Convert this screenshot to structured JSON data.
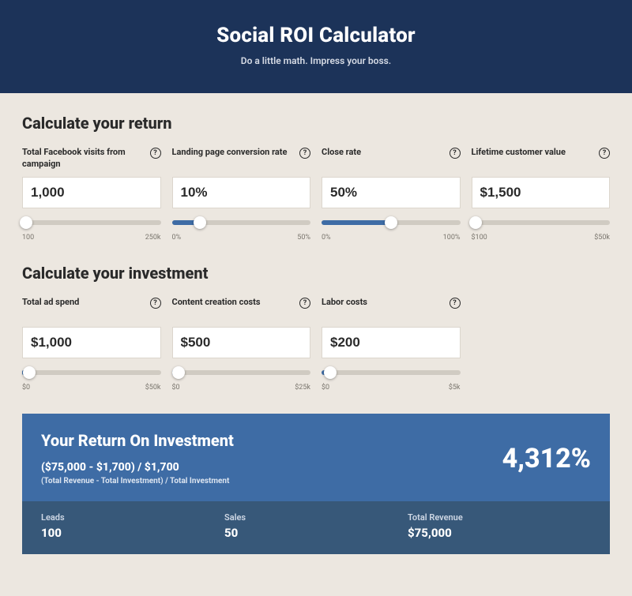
{
  "colors": {
    "hero_bg": "#1c3359",
    "page_bg": "#ece7e0",
    "card_bg": "#3e6ca5",
    "card_bottom_bg": "#375879",
    "slider_track": "#d0cbc2",
    "slider_fill": "#3e6ca5",
    "input_bg": "#ffffff",
    "text": "#2a2a2a"
  },
  "hero": {
    "title": "Social ROI Calculator",
    "subtitle": "Do a little math. Impress your boss."
  },
  "sections": {
    "return": {
      "title": "Calculate your return"
    },
    "investment": {
      "title": "Calculate your investment"
    }
  },
  "return_fields": [
    {
      "label": "Total Facebook visits from campaign",
      "value": "1,000",
      "min": "100",
      "max": "250k",
      "fill_pct": 0,
      "thumb_pct": 3
    },
    {
      "label": "Landing page conversion rate",
      "value": "10%",
      "min": "0%",
      "max": "50%",
      "fill_pct": 20,
      "thumb_pct": 20
    },
    {
      "label": "Close rate",
      "value": "50%",
      "min": "0%",
      "max": "100%",
      "fill_pct": 50,
      "thumb_pct": 50
    },
    {
      "label": "Lifetime customer value",
      "value": "$1,500",
      "min": "$100",
      "max": "$50k",
      "fill_pct": 3,
      "thumb_pct": 3
    }
  ],
  "investment_fields": [
    {
      "label": "Total ad spend",
      "value": "$1,000",
      "min": "$0",
      "max": "$50k",
      "fill_pct": 2,
      "thumb_pct": 5
    },
    {
      "label": "Content creation costs",
      "value": "$500",
      "min": "$0",
      "max": "$25k",
      "fill_pct": 2,
      "thumb_pct": 5
    },
    {
      "label": "Labor costs",
      "value": "$200",
      "min": "$0",
      "max": "$5k",
      "fill_pct": 4,
      "thumb_pct": 6
    }
  ],
  "roi": {
    "heading": "Your Return On Investment",
    "formula": "($75,000 - $1,700) / $1,700",
    "formula_caption": "(Total Revenue - Total Investment) / Total Investment",
    "percent": "4,312%",
    "stats": [
      {
        "label": "Leads",
        "value": "100"
      },
      {
        "label": "Sales",
        "value": "50"
      },
      {
        "label": "Total Revenue",
        "value": "$75,000"
      }
    ]
  }
}
